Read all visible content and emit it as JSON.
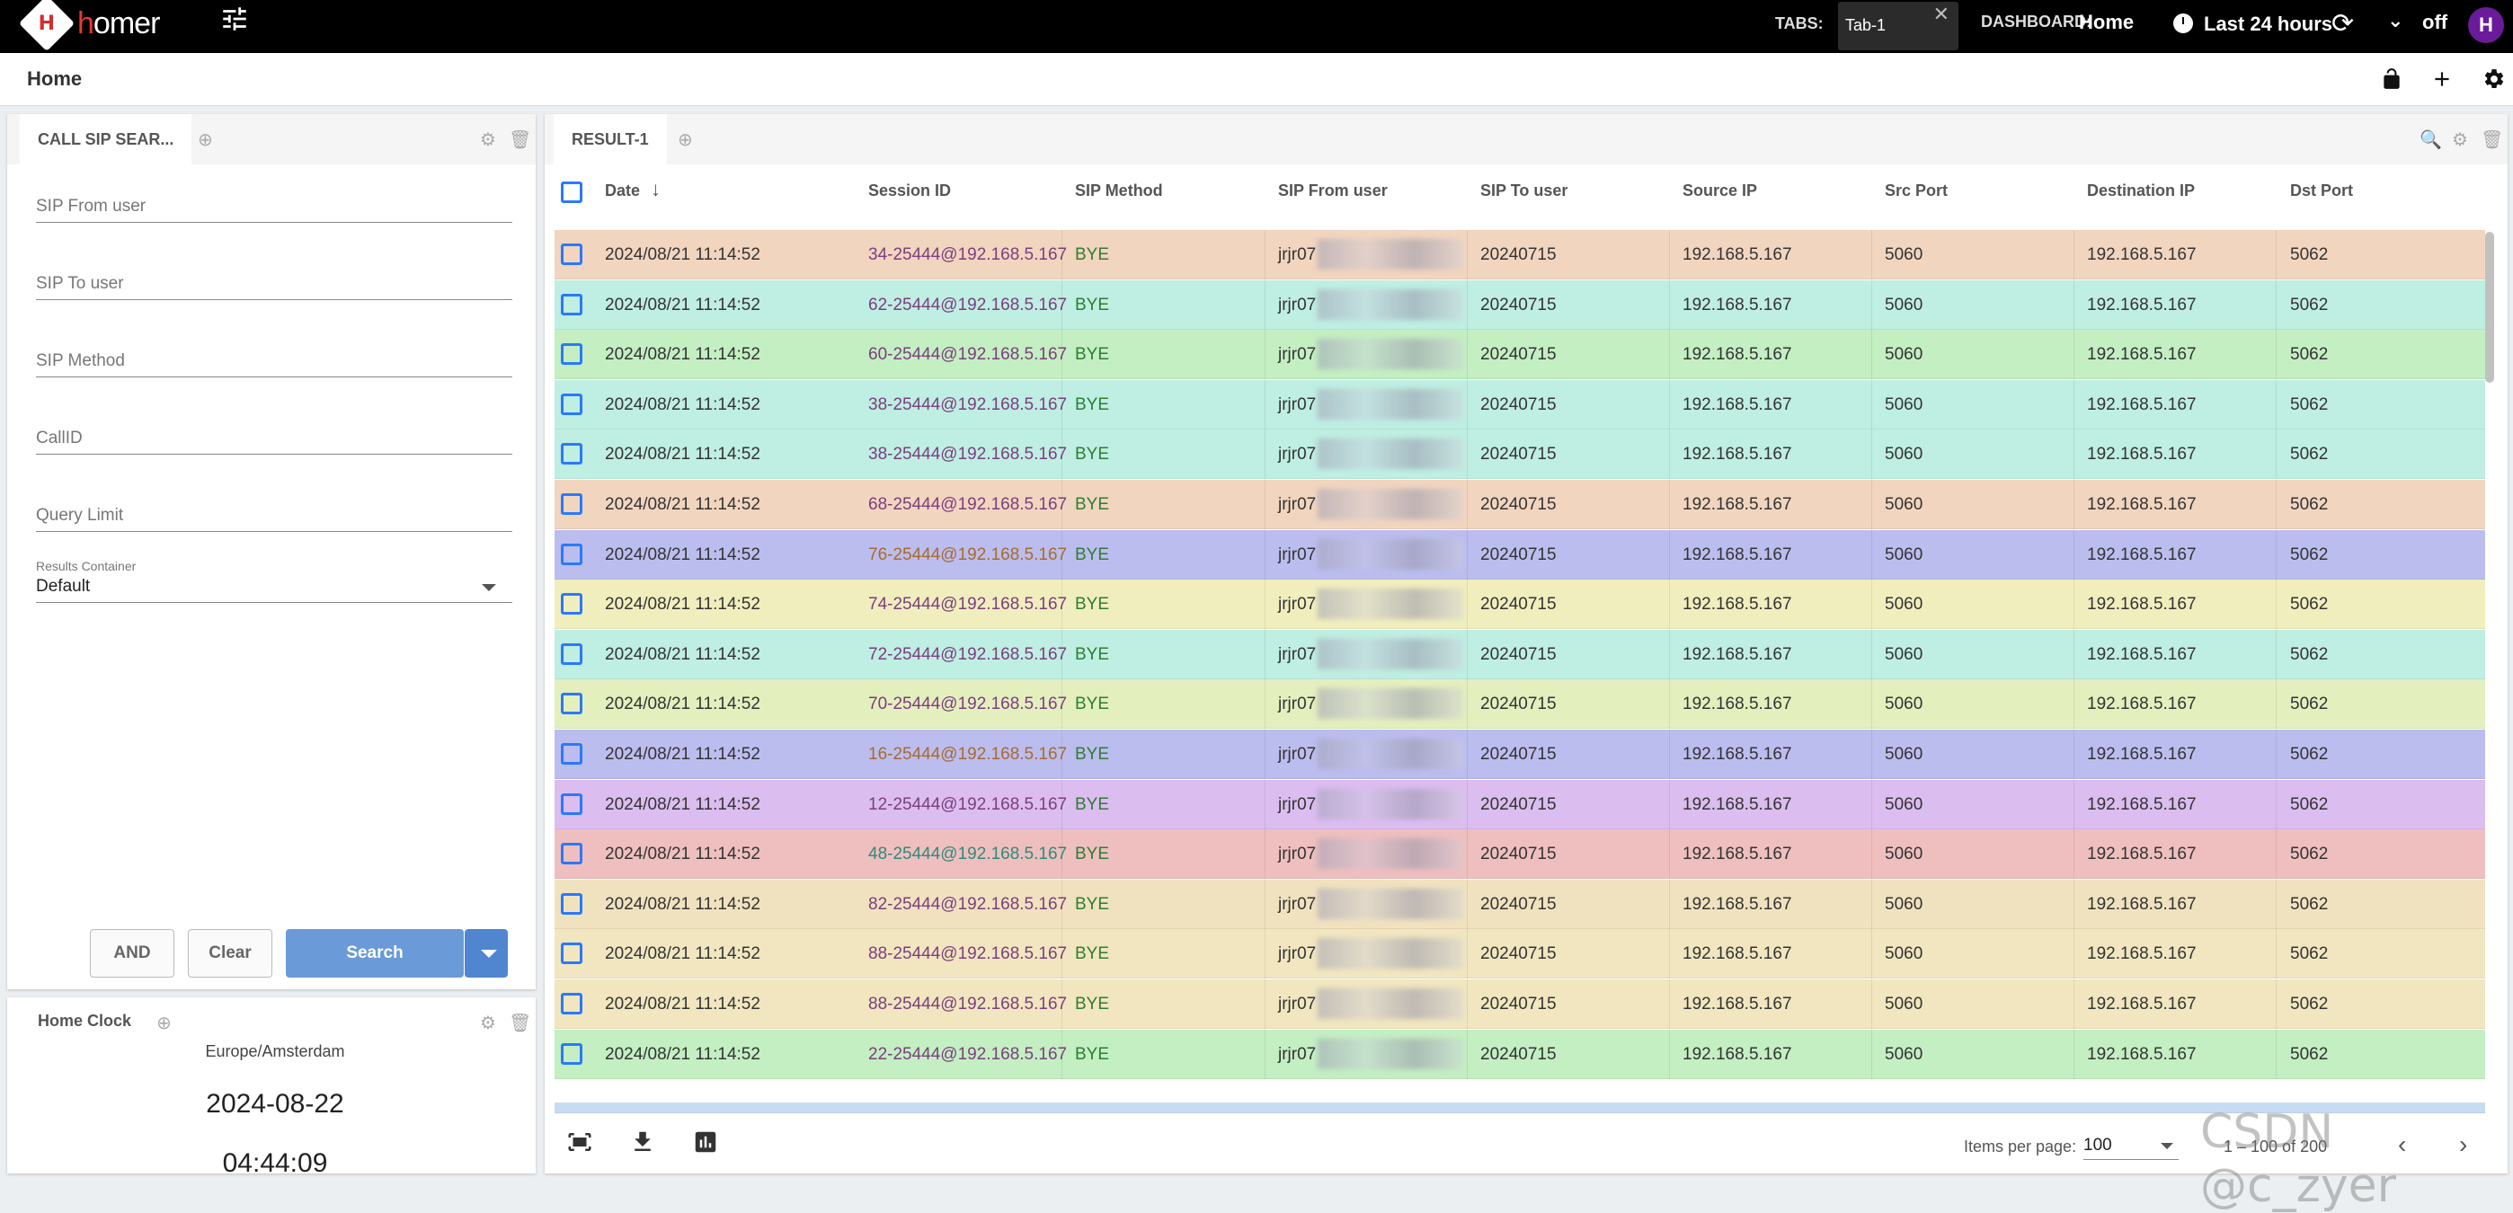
{
  "app": {
    "logo_mark": "H",
    "logo_h": "h",
    "logo_rest": "omer",
    "tabs_label": "TABS:",
    "tab_name": "Tab-1",
    "tab_close": "✕",
    "dashboard_label": "DASHBOARD:",
    "dashboard_name": "Home",
    "time_range": "Last 24 hours",
    "refresh_mode": "off",
    "user_initial": "H"
  },
  "breadcrumb": "Home",
  "search_panel": {
    "title": "CALL SIP SEAR...",
    "fields": [
      "SIP From user",
      "SIP To user",
      "SIP Method",
      "CallID",
      "Query Limit"
    ],
    "results_container_label": "Results Container",
    "results_container_value": "Default",
    "btn_and": "AND",
    "btn_clear": "Clear",
    "btn_search": "Search"
  },
  "clock_panel": {
    "title": "Home Clock",
    "timezone": "Europe/Amsterdam",
    "date": "2024-08-22",
    "time": "04:44:09"
  },
  "result_panel": {
    "tab": "RESULT-1",
    "columns": [
      "Date",
      "Session ID",
      "SIP Method",
      "SIP From user",
      "SIP To user",
      "Source IP",
      "Src Port",
      "Destination IP",
      "Dst Port"
    ],
    "rows": [
      {
        "date": "2024/08/21 11:14:52",
        "sid": "34-25444@192.168.5.167",
        "method": "BYE",
        "from": "jrjr07",
        "to": "20240715",
        "src": "192.168.5.167",
        "sport": "5060",
        "dst": "192.168.5.167",
        "dport": "5062",
        "color": "#f2d5bf",
        "sidcolor": "#7b3e7e"
      },
      {
        "date": "2024/08/21 11:14:52",
        "sid": "62-25444@192.168.5.167",
        "method": "BYE",
        "from": "jrjr07",
        "to": "20240715",
        "src": "192.168.5.167",
        "sport": "5060",
        "dst": "192.168.5.167",
        "dport": "5062",
        "color": "#bfeee2",
        "sidcolor": "#7b3e7e"
      },
      {
        "date": "2024/08/21 11:14:52",
        "sid": "60-25444@192.168.5.167",
        "method": "BYE",
        "from": "jrjr07",
        "to": "20240715",
        "src": "192.168.5.167",
        "sport": "5060",
        "dst": "192.168.5.167",
        "dport": "5062",
        "color": "#c3efc2",
        "sidcolor": "#7b3e7e"
      },
      {
        "date": "2024/08/21 11:14:52",
        "sid": "38-25444@192.168.5.167",
        "method": "BYE",
        "from": "jrjr07",
        "to": "20240715",
        "src": "192.168.5.167",
        "sport": "5060",
        "dst": "192.168.5.167",
        "dport": "5062",
        "color": "#bfeee2",
        "sidcolor": "#7b3e7e"
      },
      {
        "date": "2024/08/21 11:14:52",
        "sid": "38-25444@192.168.5.167",
        "method": "BYE",
        "from": "jrjr07",
        "to": "20240715",
        "src": "192.168.5.167",
        "sport": "5060",
        "dst": "192.168.5.167",
        "dport": "5062",
        "color": "#bfeee2",
        "sidcolor": "#7b3e7e"
      },
      {
        "date": "2024/08/21 11:14:52",
        "sid": "68-25444@192.168.5.167",
        "method": "BYE",
        "from": "jrjr07",
        "to": "20240715",
        "src": "192.168.5.167",
        "sport": "5060",
        "dst": "192.168.5.167",
        "dport": "5062",
        "color": "#f2d5bf",
        "sidcolor": "#7b3e7e"
      },
      {
        "date": "2024/08/21 11:14:52",
        "sid": "76-25444@192.168.5.167",
        "method": "BYE",
        "from": "jrjr07",
        "to": "20240715",
        "src": "192.168.5.167",
        "sport": "5060",
        "dst": "192.168.5.167",
        "dport": "5062",
        "color": "#bcbdef",
        "sidcolor": "#a66b2e"
      },
      {
        "date": "2024/08/21 11:14:52",
        "sid": "74-25444@192.168.5.167",
        "method": "BYE",
        "from": "jrjr07",
        "to": "20240715",
        "src": "192.168.5.167",
        "sport": "5060",
        "dst": "192.168.5.167",
        "dport": "5062",
        "color": "#f1eebe",
        "sidcolor": "#7b3e7e"
      },
      {
        "date": "2024/08/21 11:14:52",
        "sid": "72-25444@192.168.5.167",
        "method": "BYE",
        "from": "jrjr07",
        "to": "20240715",
        "src": "192.168.5.167",
        "sport": "5060",
        "dst": "192.168.5.167",
        "dport": "5062",
        "color": "#bfeee2",
        "sidcolor": "#7b3e7e"
      },
      {
        "date": "2024/08/21 11:14:52",
        "sid": "70-25444@192.168.5.167",
        "method": "BYE",
        "from": "jrjr07",
        "to": "20240715",
        "src": "192.168.5.167",
        "sport": "5060",
        "dst": "192.168.5.167",
        "dport": "5062",
        "color": "#e4efbe",
        "sidcolor": "#7b3e7e"
      },
      {
        "date": "2024/08/21 11:14:52",
        "sid": "16-25444@192.168.5.167",
        "method": "BYE",
        "from": "jrjr07",
        "to": "20240715",
        "src": "192.168.5.167",
        "sport": "5060",
        "dst": "192.168.5.167",
        "dport": "5062",
        "color": "#bcbdef",
        "sidcolor": "#a66b2e"
      },
      {
        "date": "2024/08/21 11:14:52",
        "sid": "12-25444@192.168.5.167",
        "method": "BYE",
        "from": "jrjr07",
        "to": "20240715",
        "src": "192.168.5.167",
        "sport": "5060",
        "dst": "192.168.5.167",
        "dport": "5062",
        "color": "#dcbdf0",
        "sidcolor": "#7b3e7e"
      },
      {
        "date": "2024/08/21 11:14:52",
        "sid": "48-25444@192.168.5.167",
        "method": "BYE",
        "from": "jrjr07",
        "to": "20240715",
        "src": "192.168.5.167",
        "sport": "5060",
        "dst": "192.168.5.167",
        "dport": "5062",
        "color": "#efbfbf",
        "sidcolor": "#2f8a7a"
      },
      {
        "date": "2024/08/21 11:14:52",
        "sid": "82-25444@192.168.5.167",
        "method": "BYE",
        "from": "jrjr07",
        "to": "20240715",
        "src": "192.168.5.167",
        "sport": "5060",
        "dst": "192.168.5.167",
        "dport": "5062",
        "color": "#f1e2bf",
        "sidcolor": "#7b3e7e"
      },
      {
        "date": "2024/08/21 11:14:52",
        "sid": "88-25444@192.168.5.167",
        "method": "BYE",
        "from": "jrjr07",
        "to": "20240715",
        "src": "192.168.5.167",
        "sport": "5060",
        "dst": "192.168.5.167",
        "dport": "5062",
        "color": "#f1e6bf",
        "sidcolor": "#7b3e7e"
      },
      {
        "date": "2024/08/21 11:14:52",
        "sid": "88-25444@192.168.5.167",
        "method": "BYE",
        "from": "jrjr07",
        "to": "20240715",
        "src": "192.168.5.167",
        "sport": "5060",
        "dst": "192.168.5.167",
        "dport": "5062",
        "color": "#f1e6bf",
        "sidcolor": "#7b3e7e"
      },
      {
        "date": "2024/08/21 11:14:52",
        "sid": "22-25444@192.168.5.167",
        "method": "BYE",
        "from": "jrjr07",
        "to": "20240715",
        "src": "192.168.5.167",
        "sport": "5060",
        "dst": "192.168.5.167",
        "dport": "5062",
        "color": "#c3efc2",
        "sidcolor": "#7b3e7e"
      }
    ],
    "partial_row_color": "#c6dcf2",
    "items_per_page_label": "Items per page:",
    "items_per_page": "100",
    "range": "1 – 100 of 200"
  },
  "watermark": "CSDN @c_zyer",
  "colors": {
    "accent": "#2979ff",
    "method_text": "#2e7d32",
    "search_button": "#6a9ad8",
    "avatar": "#6a1b9a"
  },
  "icons": [
    "tune-icon",
    "clock-icon",
    "refresh-icon",
    "chevron-down-icon",
    "lock-open-icon",
    "add-icon",
    "settings-icon",
    "add-circle-icon",
    "gear-icon",
    "trash-icon",
    "search-icon",
    "arrow-down-icon",
    "fit-screen-icon",
    "download-icon",
    "bar-chart-icon",
    "chevron-right-icon",
    "chevron-left-icon"
  ]
}
